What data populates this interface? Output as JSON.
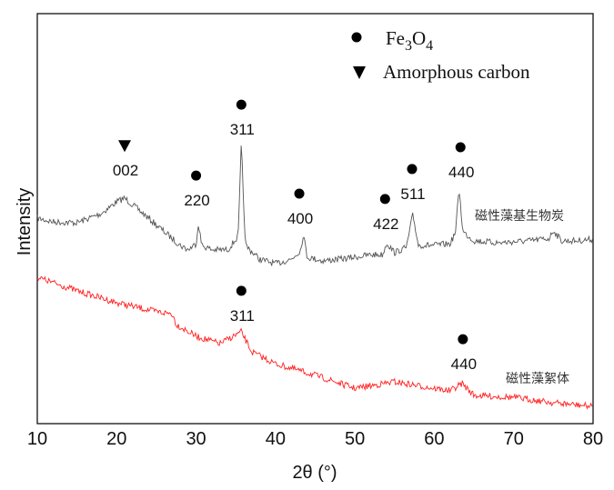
{
  "chart_data": {
    "type": "line",
    "xlabel": "2θ (°)",
    "ylabel": "Intensity",
    "xlim": [
      10,
      80
    ],
    "ylim": [
      0,
      100
    ],
    "xticks": [
      10,
      20,
      30,
      40,
      50,
      60,
      70,
      80
    ],
    "grid": false,
    "legend": {
      "placement": "top-center",
      "entries": [
        {
          "marker": "circle",
          "label_main": "Fe",
          "sub1": "3",
          "label_mid": "O",
          "sub2": "4"
        },
        {
          "marker": "triangle-down",
          "label": "Amorphous carbon"
        }
      ]
    },
    "series": [
      {
        "name": "磁性藻基生物炭",
        "color": "#555555",
        "x": [
          10,
          12,
          15,
          18,
          20,
          21,
          22,
          24,
          26,
          28,
          29,
          30,
          30.3,
          30.7,
          32,
          34,
          35.3,
          35.7,
          36.2,
          38,
          40,
          42,
          43.2,
          43.5,
          44,
          46,
          48,
          50,
          52,
          53.5,
          54,
          55,
          56.5,
          57.3,
          58,
          60,
          62,
          62.7,
          63.1,
          63.6,
          65,
          68,
          72,
          74.5,
          75,
          76,
          78,
          80
        ],
        "y": [
          50.1,
          49.2,
          49.0,
          51.2,
          54.1,
          55.0,
          53.4,
          50.1,
          46.8,
          43.5,
          42.4,
          43.9,
          49.0,
          43.5,
          42.4,
          42.4,
          45.7,
          68.3,
          43.5,
          40.1,
          39.0,
          40.1,
          42.4,
          46.3,
          40.6,
          39.7,
          40.1,
          40.6,
          41.2,
          41.2,
          44.1,
          41.7,
          43.0,
          51.0,
          43.5,
          43.5,
          43.9,
          46.8,
          57.6,
          46.8,
          44.6,
          44.1,
          44.6,
          45.2,
          47.2,
          44.6,
          44.6,
          45.0
        ],
        "annotations": [
          {
            "marker": "triangle-down",
            "label": "002",
            "x": 21,
            "y": 67.8
          },
          {
            "marker": "circle",
            "label": "220",
            "x": 30,
            "y": 60.5
          },
          {
            "marker": "circle",
            "label": "311",
            "x": 35.7,
            "y": 77.8
          },
          {
            "marker": "circle",
            "label": "400",
            "x": 43,
            "y": 56.1
          },
          {
            "marker": "circle",
            "label": "422",
            "x": 53.8,
            "y": 54.8
          },
          {
            "marker": "circle",
            "label": "511",
            "x": 57.2,
            "y": 62.1
          },
          {
            "marker": "circle",
            "label": "440",
            "x": 63.3,
            "y": 67.4
          }
        ]
      },
      {
        "name": "磁性藻絮体",
        "color": "#ff2020",
        "x": [
          10,
          15,
          20,
          25,
          27,
          27.5,
          30,
          33,
          35.7,
          37,
          40,
          45,
          50,
          55,
          60,
          62,
          63.5,
          65,
          70,
          75,
          80
        ],
        "y": [
          35.7,
          32.4,
          29.5,
          27.3,
          26.8,
          24.2,
          21.3,
          19.5,
          22.4,
          17.5,
          14.6,
          11.8,
          8.6,
          10.2,
          8.6,
          8.0,
          9.8,
          6.9,
          6.4,
          5.1,
          4.2
        ],
        "annotations": [
          {
            "marker": "circle",
            "label": "311",
            "x": 35.7,
            "y": 32.4
          },
          {
            "marker": "circle",
            "label": "440",
            "x": 63.6,
            "y": 20.6
          }
        ]
      }
    ]
  }
}
